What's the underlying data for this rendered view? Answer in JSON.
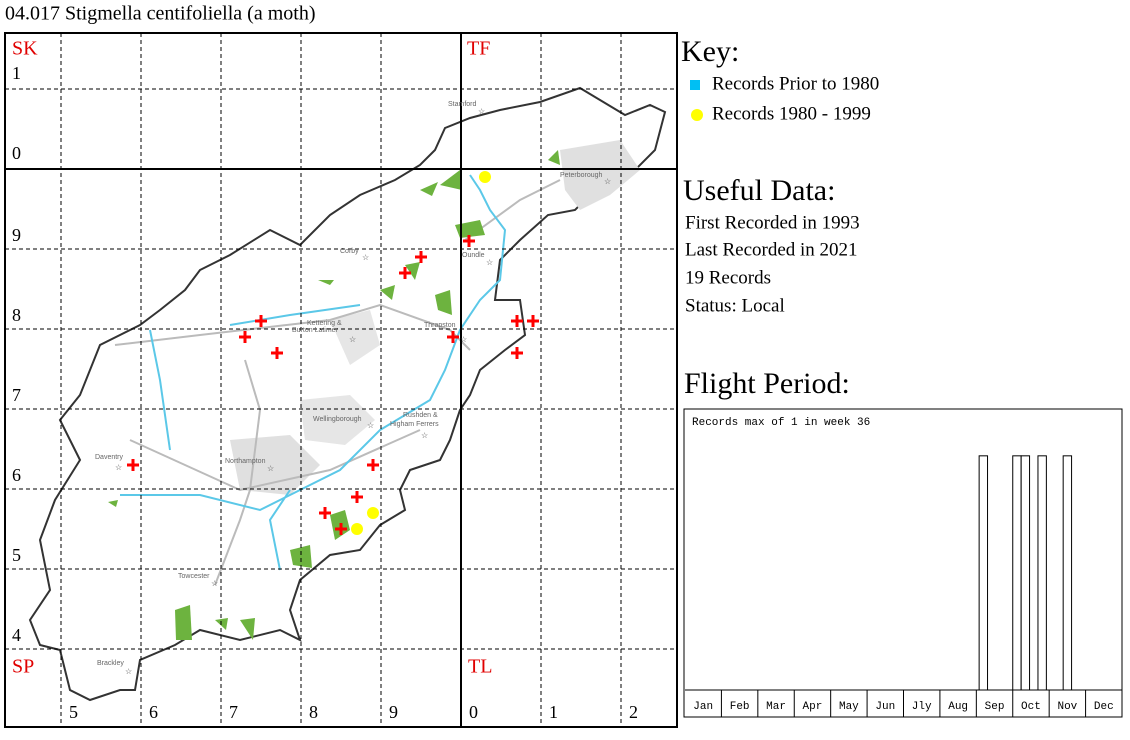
{
  "header": {
    "title": "04.017 Stigmella centifoliella (a moth)"
  },
  "map": {
    "grid_squares": [
      "SK",
      "TF",
      "SP",
      "TL"
    ],
    "row_labels": [
      "1",
      "0",
      "9",
      "8",
      "7",
      "6",
      "5",
      "4"
    ],
    "col_labels": [
      "5",
      "6",
      "7",
      "8",
      "9",
      "0",
      "1",
      "2"
    ],
    "places": [
      "Stamford",
      "Peterborough",
      "Corby",
      "Oundle",
      "Kettering &",
      "Burton Latimer",
      "Thrapston",
      "Wellingborough",
      "Rushden &",
      "Higham Ferrers",
      "Daventry",
      "Northampton",
      "Towcester",
      "Brackley"
    ]
  },
  "key": {
    "title": "Key:",
    "items": [
      "Records Prior to 1980",
      "Records 1980 - 1999"
    ]
  },
  "useful_data": {
    "title": "Useful Data:",
    "lines": [
      "First Recorded in 1993",
      "Last Recorded in 2021",
      "19 Records",
      "Status: Local"
    ]
  },
  "chart_data": {
    "type": "bar",
    "title": "Flight Period:",
    "annotation": "Records max of 1 in week 36",
    "categories": [
      "Jan",
      "Feb",
      "Mar",
      "Apr",
      "May",
      "Jun",
      "Jly",
      "Aug",
      "Sep",
      "Oct",
      "Nov",
      "Dec"
    ],
    "x": [
      36,
      40,
      41,
      43,
      46
    ],
    "values": [
      1,
      1,
      1,
      1,
      1
    ],
    "xlim": [
      0,
      52
    ],
    "ylim": [
      0,
      1.2
    ],
    "color": "#ffffff"
  }
}
